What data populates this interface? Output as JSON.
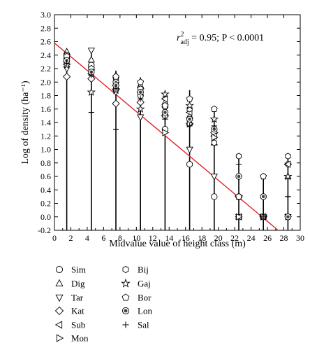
{
  "chart_data": {
    "type": "scatter",
    "xlabel": "Midvalue value of height class (m)",
    "ylabel": "Log of density (ha⁻¹)",
    "xlim": [
      0,
      30
    ],
    "ylim": [
      -0.2,
      3.0
    ],
    "xticks": [
      0,
      2,
      4,
      6,
      8,
      10,
      12,
      14,
      16,
      18,
      20,
      22,
      24,
      26,
      28,
      30
    ],
    "yticks": [
      -0.2,
      0.0,
      0.2,
      0.4,
      0.6,
      0.8,
      1.0,
      1.2,
      1.4,
      1.6,
      1.8,
      2.0,
      2.2,
      2.4,
      2.6,
      2.8,
      3.0
    ],
    "annotation": {
      "r_symbol": "r",
      "r_exponent": "2",
      "r_subscript": "adj",
      "rest": " = 0.95;  P < 0.0001"
    },
    "regression_line": {
      "x": [
        0,
        27.3
      ],
      "y": [
        2.58,
        -0.2
      ],
      "color": "#e0242b"
    },
    "verticals": [
      {
        "x": 1.5,
        "ytop": 2.45
      },
      {
        "x": 4.5,
        "ytop": 2.47
      },
      {
        "x": 7.5,
        "ytop": 2.17
      },
      {
        "x": 10.5,
        "ytop": 2.07
      },
      {
        "x": 13.5,
        "ytop": 1.85
      },
      {
        "x": 16.5,
        "ytop": 1.88
      },
      {
        "x": 19.5,
        "ytop": 1.6
      },
      {
        "x": 22.5,
        "ytop": 0.9
      },
      {
        "x": 25.5,
        "ytop": 0.6
      },
      {
        "x": 28.5,
        "ytop": 0.9
      }
    ],
    "error_bars": [
      {
        "x": 4.5,
        "low": 1.55
      },
      {
        "x": 7.5,
        "low": 1.3
      },
      {
        "x": 28.5,
        "low": 0.3
      }
    ],
    "series": [
      {
        "name": "Sim",
        "marker": "circle",
        "points": [
          [
            1.5,
            2.35
          ],
          [
            4.5,
            2.25
          ],
          [
            7.5,
            2.0
          ],
          [
            10.5,
            1.8
          ],
          [
            13.5,
            1.3
          ],
          [
            16.5,
            0.78
          ],
          [
            19.5,
            0.3
          ],
          [
            22.5,
            0.3
          ],
          [
            25.5,
            0.3
          ],
          [
            28.5,
            0.0
          ]
        ]
      },
      {
        "name": "Dig",
        "marker": "triangle-up",
        "points": [
          [
            1.5,
            2.45
          ],
          [
            4.5,
            2.33
          ],
          [
            7.5,
            2.1
          ],
          [
            10.5,
            1.95
          ],
          [
            13.5,
            1.7
          ],
          [
            16.5,
            1.5
          ],
          [
            19.5,
            1.1
          ],
          [
            22.5,
            0.0
          ],
          [
            25.5,
            0.0
          ],
          [
            28.5,
            0.6
          ]
        ]
      },
      {
        "name": "Tar",
        "marker": "triangle-down",
        "points": [
          [
            1.5,
            2.2
          ],
          [
            4.5,
            2.47
          ],
          [
            7.5,
            1.85
          ],
          [
            10.5,
            1.48
          ],
          [
            13.5,
            1.6
          ],
          [
            16.5,
            1.0
          ],
          [
            19.5,
            0.6
          ],
          [
            22.5,
            0.0
          ],
          [
            25.5,
            0.0
          ],
          [
            28.5,
            0.0
          ]
        ]
      },
      {
        "name": "Kat",
        "marker": "diamond",
        "points": [
          [
            1.5,
            2.08
          ],
          [
            4.5,
            2.05
          ],
          [
            7.5,
            1.68
          ],
          [
            10.5,
            1.7
          ],
          [
            13.5,
            1.5
          ],
          [
            16.5,
            1.38
          ],
          [
            19.5,
            1.25
          ],
          [
            22.5,
            0.3
          ],
          [
            25.5,
            0.0
          ],
          [
            28.5,
            0.78
          ]
        ]
      },
      {
        "name": "Sub",
        "marker": "triangle-left",
        "points": [
          [
            1.5,
            2.3
          ],
          [
            4.5,
            2.12
          ],
          [
            7.5,
            1.95
          ],
          [
            10.5,
            1.85
          ],
          [
            13.5,
            1.75
          ],
          [
            16.5,
            1.55
          ],
          [
            19.5,
            1.2
          ],
          [
            22.5,
            0.0
          ],
          [
            25.5,
            0.0
          ],
          [
            28.5,
            0.78
          ]
        ]
      },
      {
        "name": "Mon",
        "marker": "triangle-right",
        "points": [
          [
            1.5,
            2.4
          ],
          [
            4.5,
            2.18
          ],
          [
            7.5,
            1.9
          ],
          [
            10.5,
            1.9
          ],
          [
            13.5,
            1.25
          ],
          [
            16.5,
            1.38
          ],
          [
            19.5,
            1.18
          ],
          [
            22.5,
            0.0
          ],
          [
            25.5,
            0.0
          ],
          [
            28.5,
            0.0
          ]
        ]
      },
      {
        "name": "Bij",
        "marker": "hexagon",
        "points": [
          [
            1.5,
            2.4
          ],
          [
            4.5,
            2.2
          ],
          [
            7.5,
            2.05
          ],
          [
            10.5,
            1.9
          ],
          [
            13.5,
            1.5
          ],
          [
            16.5,
            1.6
          ],
          [
            19.5,
            1.1
          ],
          [
            22.5,
            0.9
          ],
          [
            25.5,
            0.3
          ],
          [
            28.5,
            0.9
          ]
        ]
      },
      {
        "name": "Gaj",
        "marker": "star",
        "points": [
          [
            1.5,
            2.25
          ],
          [
            4.5,
            1.85
          ],
          [
            7.5,
            1.88
          ],
          [
            10.5,
            1.6
          ],
          [
            13.5,
            1.82
          ],
          [
            16.5,
            1.65
          ],
          [
            19.5,
            1.45
          ],
          [
            22.5,
            0.3
          ],
          [
            25.5,
            0.0
          ],
          [
            28.5,
            0.6
          ]
        ]
      },
      {
        "name": "Bor",
        "marker": "pentagon",
        "points": [
          [
            1.5,
            2.38
          ],
          [
            4.5,
            2.2
          ],
          [
            7.5,
            2.08
          ],
          [
            10.5,
            2.0
          ],
          [
            13.5,
            1.65
          ],
          [
            16.5,
            1.75
          ],
          [
            19.5,
            1.6
          ],
          [
            22.5,
            0.3
          ],
          [
            25.5,
            0.6
          ],
          [
            28.5,
            0.0
          ]
        ]
      },
      {
        "name": "Lon",
        "marker": "circle-dot",
        "points": [
          [
            1.5,
            2.32
          ],
          [
            4.5,
            2.15
          ],
          [
            7.5,
            1.95
          ],
          [
            10.5,
            1.85
          ],
          [
            13.5,
            1.55
          ],
          [
            16.5,
            1.45
          ],
          [
            19.5,
            1.3
          ],
          [
            22.5,
            0.6
          ],
          [
            25.5,
            0.3
          ],
          [
            28.5,
            0.0
          ]
        ]
      },
      {
        "name": "Sal",
        "marker": "plus",
        "points": [
          [
            1.5,
            2.28
          ],
          [
            4.5,
            2.1
          ],
          [
            7.5,
            1.9
          ],
          [
            10.5,
            1.75
          ],
          [
            13.5,
            1.45
          ],
          [
            16.5,
            1.35
          ],
          [
            19.5,
            1.35
          ],
          [
            22.5,
            0.78
          ],
          [
            25.5,
            0.0
          ],
          [
            28.5,
            0.3
          ]
        ]
      }
    ]
  }
}
